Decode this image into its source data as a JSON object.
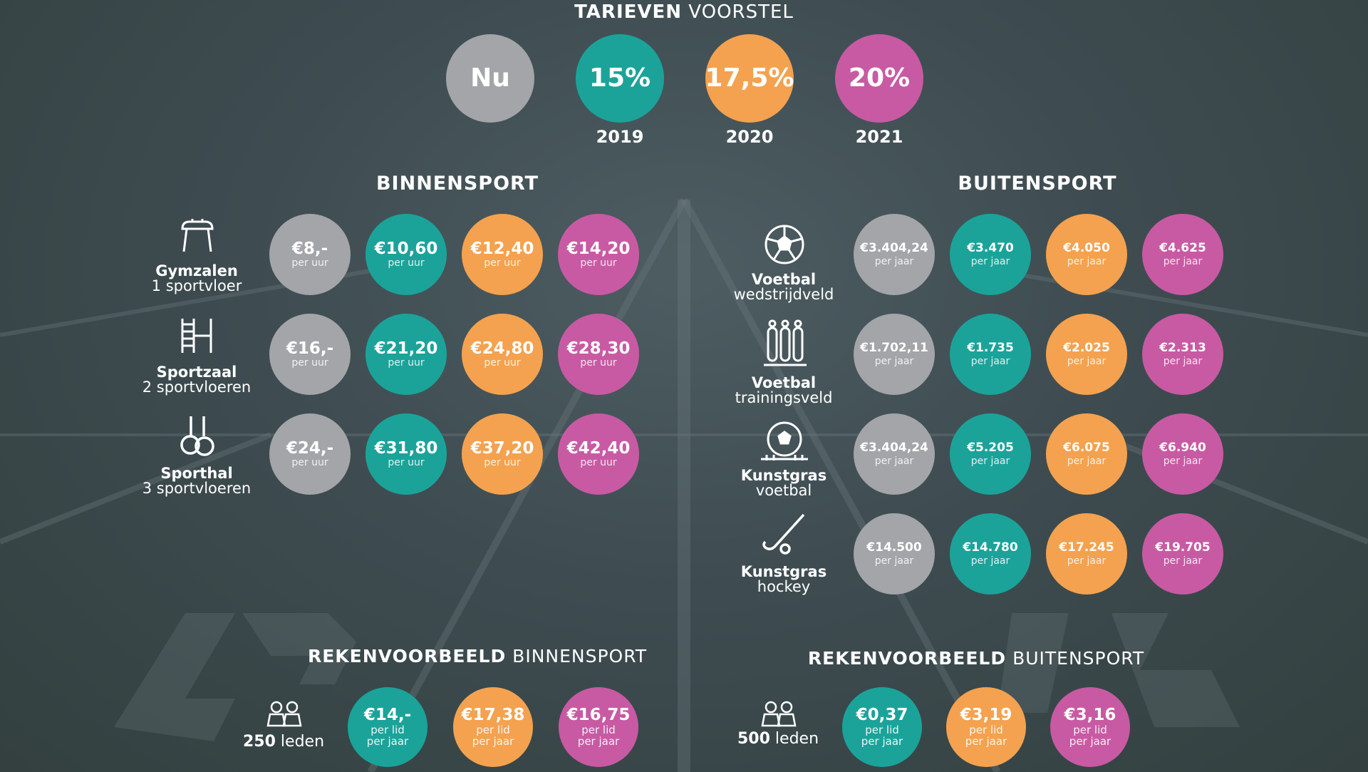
{
  "header": {
    "title_bold": "TARIEVEN",
    "title_light": "VOORSTEL",
    "circles": [
      {
        "label": "Nu",
        "year": "",
        "color": "#a3a5a8"
      },
      {
        "label": "15%",
        "year": "2019",
        "color": "#1ba39a"
      },
      {
        "label": "17,5%",
        "year": "2020",
        "color": "#f4a24f"
      },
      {
        "label": "20%",
        "year": "2021",
        "color": "#c85aa3"
      }
    ]
  },
  "binnensport": {
    "title": "BINNENSPORT",
    "unit": "per uur",
    "rows": [
      {
        "name": "Gymzalen",
        "sub": "1 sportvloer",
        "icon": "pommel-horse-icon",
        "values": [
          "€8,-",
          "€10,60",
          "€12,40",
          "€14,20"
        ]
      },
      {
        "name": "Sportzaal",
        "sub": "2 sportvloeren",
        "icon": "wall-bars-icon",
        "values": [
          "€16,-",
          "€21,20",
          "€24,80",
          "€28,30"
        ]
      },
      {
        "name": "Sporthal",
        "sub": "3 sportvloeren",
        "icon": "gymnastic-rings-icon",
        "values": [
          "€24,-",
          "€31,80",
          "€37,20",
          "€42,40"
        ]
      }
    ]
  },
  "buitensport": {
    "title": "BUITENSPORT",
    "unit": "per jaar",
    "rows": [
      {
        "name": "Voetbal",
        "sub": "wedstrijdveld",
        "icon": "soccer-ball-icon",
        "values": [
          "€3.404,24",
          "€3.470",
          "€4.050",
          "€4.625"
        ]
      },
      {
        "name": "Voetbal",
        "sub": "trainingsveld",
        "icon": "training-dummies-icon",
        "values": [
          "€1.702,11",
          "€1.735",
          "€2.025",
          "€2.313"
        ]
      },
      {
        "name": "Kunstgras",
        "sub": "voetbal",
        "icon": "ball-on-turf-icon",
        "values": [
          "€3.404,24",
          "€5.205",
          "€6.075",
          "€6.940"
        ]
      },
      {
        "name": "Kunstgras",
        "sub": "hockey",
        "icon": "hockey-stick-icon",
        "values": [
          "€14.500",
          "€14.780",
          "€17.245",
          "€19.705"
        ]
      }
    ]
  },
  "rekenvoorbeeld_binnen": {
    "title_bold": "REKENVOORBEELD",
    "title_light": "BINNENSPORT",
    "members_bold": "250",
    "members_light": "leden",
    "unit1": "per lid",
    "unit2": "per jaar",
    "values": [
      "€14,-",
      "€17,38",
      "€16,75"
    ]
  },
  "rekenvoorbeeld_buiten": {
    "title_bold": "REKENVOORBEELD",
    "title_light": "BUITENSPORT",
    "members_bold": "500",
    "members_light": "leden",
    "unit1": "per lid",
    "unit2": "per jaar",
    "values": [
      "€0,37",
      "€3,19",
      "€3,16"
    ]
  }
}
